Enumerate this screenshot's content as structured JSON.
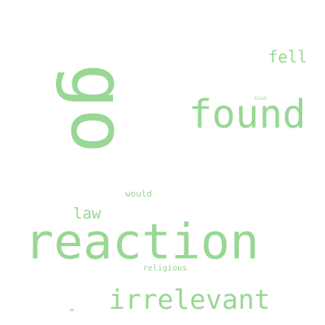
{
  "word_cloud": {
    "color": "#98d794",
    "words": {
      "reaction": "reaction",
      "found": "found",
      "go": "go",
      "irrelevant": "irrelevant",
      "fell": "fell",
      "law": "law",
      "would": "would",
      "religious": "religious",
      "kind": "kind",
      "tiny": "nb"
    }
  }
}
